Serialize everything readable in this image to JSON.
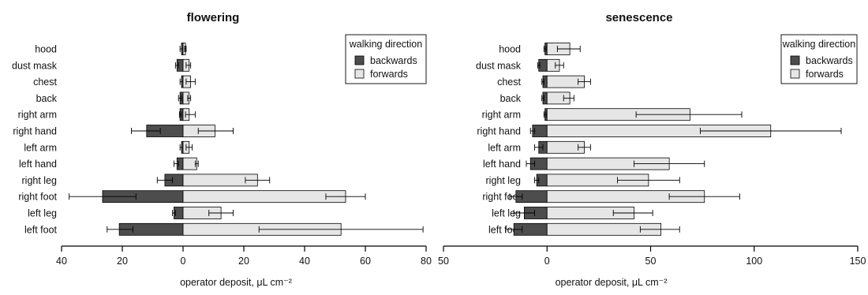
{
  "chart_data": [
    {
      "type": "bar",
      "orientation": "horizontal",
      "title": "flowering",
      "xlabel": "operator deposit,  μL cm⁻²",
      "xlim": [
        -40,
        80
      ],
      "xticks": [
        -40,
        -20,
        0,
        20,
        40,
        60,
        80
      ],
      "xtick_labels": [
        "40",
        "20",
        "0",
        "20",
        "40",
        "60",
        "80"
      ],
      "categories": [
        "hood",
        "dust mask",
        "chest",
        "back",
        "right arm",
        "right hand",
        "left arm",
        "left hand",
        "right leg",
        "right foot",
        "left leg",
        "left foot"
      ],
      "series": [
        {
          "name": "backwards",
          "color": "#4d4d4d",
          "values": [
            -0.5,
            -2,
            -0.5,
            -1,
            -1,
            -12,
            -0.5,
            -2,
            -6,
            -26.5,
            -3,
            -21
          ],
          "error_low": [
            -1,
            -2.5,
            -1,
            -1.5,
            -1.2,
            -17,
            -1,
            -3,
            -8.5,
            -37.5,
            -3.5,
            -25
          ],
          "error_high": [
            0,
            -1.5,
            0,
            -0.5,
            -0.5,
            -7.5,
            0,
            -1.5,
            -3.5,
            -15.5,
            -2.5,
            -16.5
          ]
        },
        {
          "name": "forwards",
          "color": "#e6e6e6",
          "values": [
            0.8,
            2,
            2.5,
            2,
            2,
            10.5,
            2,
            4.5,
            24.5,
            53.5,
            12.5,
            52
          ],
          "error_low": [
            0.5,
            1,
            1,
            1.5,
            0.8,
            5,
            1,
            4,
            20.5,
            47,
            8.5,
            25
          ],
          "error_high": [
            1,
            2.5,
            4,
            2.5,
            4,
            16.5,
            3,
            5,
            28.5,
            60,
            16.5,
            79
          ]
        }
      ],
      "legend": {
        "title": "walking direction",
        "position": "top-right"
      }
    },
    {
      "type": "bar",
      "orientation": "horizontal",
      "title": "senescence",
      "xlabel": "operator deposit,  μL cm⁻²",
      "xlim": [
        -50,
        150
      ],
      "xticks": [
        -50,
        0,
        50,
        100,
        150
      ],
      "xtick_labels": [
        "50",
        "0",
        "50",
        "100",
        "150"
      ],
      "categories": [
        "hood",
        "dust mask",
        "chest",
        "back",
        "right arm",
        "right hand",
        "left arm",
        "left hand",
        "right leg",
        "right foot",
        "left leg",
        "left foot"
      ],
      "series": [
        {
          "name": "backwards",
          "color": "#4d4d4d",
          "values": [
            -1,
            -4,
            -2,
            -2,
            -1,
            -7,
            -4,
            -8,
            -5,
            -15,
            -11,
            -16
          ],
          "error_low": [
            -1.5,
            -4.5,
            -2.5,
            -2.5,
            -1.5,
            -8,
            -6,
            -10,
            -6,
            -18,
            -16,
            -20
          ],
          "error_high": [
            -0.5,
            -3.5,
            -1.5,
            -1.5,
            -0.5,
            -6,
            -2,
            -6,
            -4,
            -12,
            -6,
            -12
          ]
        },
        {
          "name": "forwards",
          "color": "#e6e6e6",
          "values": [
            11,
            6,
            18,
            11,
            69,
            108,
            18,
            59,
            49,
            76,
            42,
            55
          ],
          "error_low": [
            5,
            4,
            15,
            8,
            43,
            74,
            15,
            42,
            34,
            59,
            32,
            45
          ],
          "error_high": [
            16,
            8,
            21,
            13,
            94,
            142,
            21,
            76,
            64,
            93,
            51,
            64
          ]
        }
      ],
      "legend": {
        "title": "walking direction",
        "position": "top-right"
      }
    }
  ]
}
